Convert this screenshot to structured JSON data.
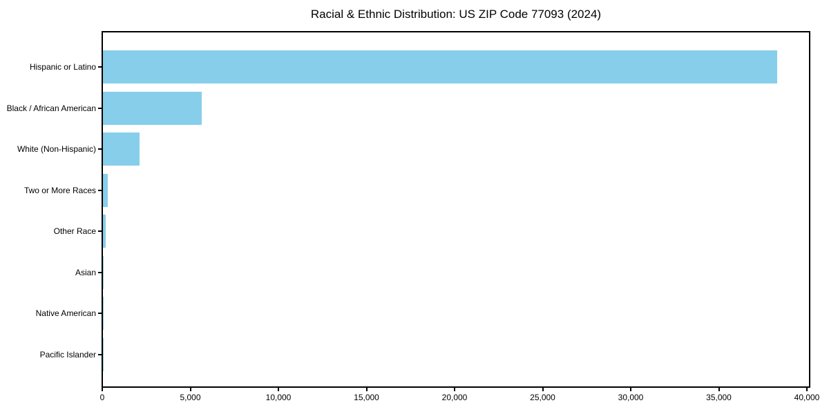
{
  "chart_data": {
    "type": "bar",
    "orientation": "horizontal",
    "title": "Racial & Ethnic Distribution: US ZIP Code 77093 (2024)",
    "categories": [
      "Hispanic or Latino",
      "Black / African American",
      "White (Non-Hispanic)",
      "Two or More Races",
      "Other Race",
      "Asian",
      "Native American",
      "Pacific Islander"
    ],
    "values": [
      38275,
      5600,
      2080,
      290,
      160,
      45,
      15,
      5
    ],
    "xlabel": "",
    "ylabel": "",
    "xlim": [
      0,
      40200
    ],
    "xticks": [
      0,
      5000,
      10000,
      15000,
      20000,
      25000,
      30000,
      35000,
      40000
    ],
    "xtick_labels": [
      "0",
      "5,000",
      "10,000",
      "15,000",
      "20,000",
      "25,000",
      "30,000",
      "35,000",
      "40,000"
    ],
    "bar_color": "#87CEEB",
    "spine_color": "#000000",
    "grid": false,
    "legend_position": "none"
  }
}
